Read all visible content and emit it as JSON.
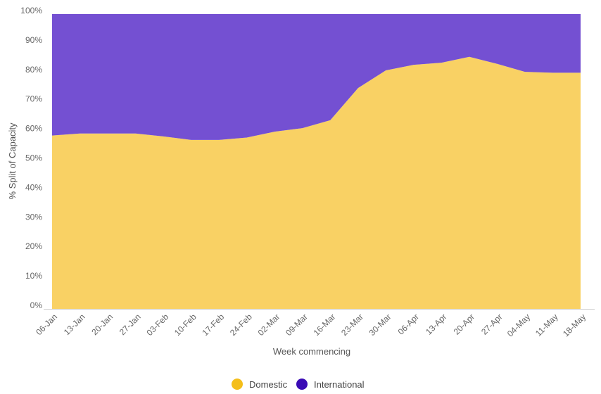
{
  "chart_data": {
    "type": "area",
    "stacked": true,
    "percent": true,
    "title": "",
    "xlabel": "Week commencing",
    "ylabel": "% Split of Capacity",
    "ylim": [
      0,
      100
    ],
    "y_ticks": [
      "0%",
      "10%",
      "20%",
      "30%",
      "40%",
      "50%",
      "60%",
      "70%",
      "80%",
      "90%",
      "100%"
    ],
    "categories": [
      "06-Jan",
      "13-Jan",
      "20-Jan",
      "27-Jan",
      "03-Feb",
      "10-Feb",
      "17-Feb",
      "24-Feb",
      "02-Mar",
      "09-Mar",
      "16-Mar",
      "23-Mar",
      "30-Mar",
      "06-Apr",
      "13-Apr",
      "20-Apr",
      "27-Apr",
      "04-May",
      "11-May",
      "18-May"
    ],
    "series": [
      {
        "name": "Domestic",
        "color": "#F9D164",
        "values": [
          58.8,
          59.5,
          59.5,
          59.5,
          58.5,
          57.3,
          57.3,
          58.1,
          60.1,
          61.3,
          64.0,
          74.9,
          80.9,
          82.8,
          83.5,
          85.5,
          83.1,
          80.4,
          80.1,
          80.1
        ]
      },
      {
        "name": "International",
        "color": "#7450D2",
        "values": [
          41.2,
          40.5,
          40.5,
          40.5,
          41.5,
          42.7,
          42.7,
          41.9,
          39.9,
          38.7,
          36.0,
          25.1,
          19.1,
          17.2,
          16.5,
          14.5,
          16.9,
          19.6,
          19.9,
          19.9
        ]
      }
    ],
    "grid": false,
    "legend": {
      "position": "bottom-center",
      "items": [
        {
          "label": "Domestic",
          "color": "#F4BE1A"
        },
        {
          "label": "International",
          "color": "#3A0BB5"
        }
      ]
    }
  }
}
